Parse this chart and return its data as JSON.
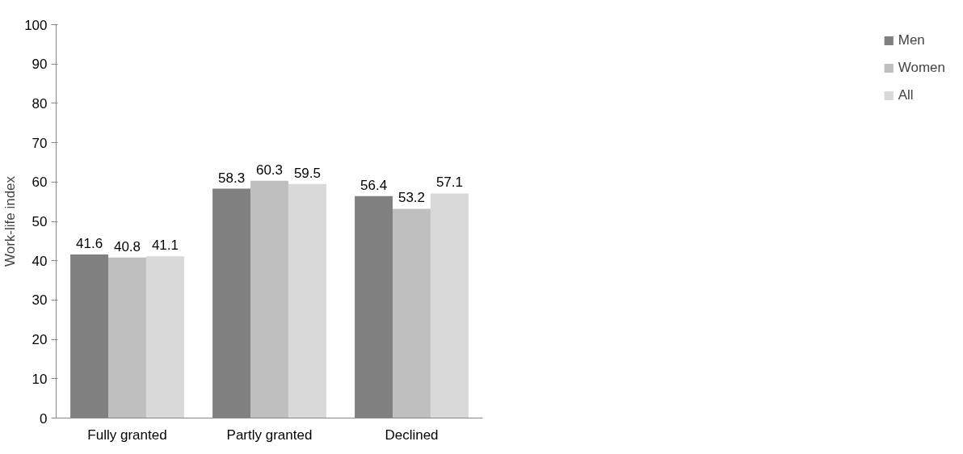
{
  "chart_data": {
    "type": "bar",
    "ylabel": "Work-life index",
    "categories": [
      "Fully granted",
      "Partly granted",
      "Declined"
    ],
    "series": [
      {
        "name": "Men",
        "color": "#808080",
        "values": [
          41.6,
          58.3,
          56.4
        ]
      },
      {
        "name": "Women",
        "color": "#bfbfbf",
        "values": [
          40.8,
          60.3,
          53.2
        ]
      },
      {
        "name": "All",
        "color": "#d9d9d9",
        "values": [
          41.1,
          59.5,
          57.1
        ]
      }
    ],
    "ylim": [
      0,
      100
    ],
    "yticks": [
      0,
      10,
      20,
      30,
      40,
      50,
      60,
      70,
      80,
      90,
      100
    ],
    "grid": false,
    "legend": "right",
    "data_labels": true
  }
}
